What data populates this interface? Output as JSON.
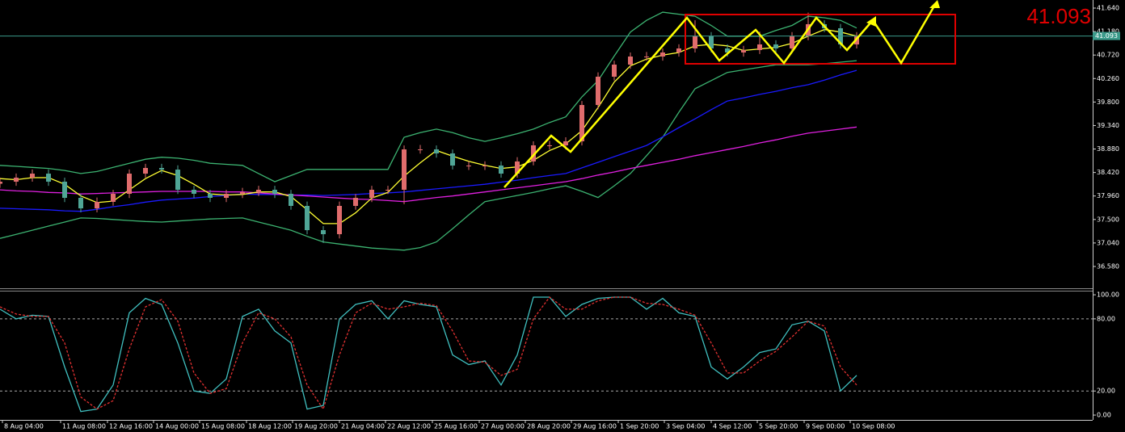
{
  "chart_data": [
    {
      "type": "candlestick",
      "x": [
        0,
        1,
        2,
        3,
        4,
        5,
        6,
        7,
        8,
        9,
        10,
        11,
        12,
        13,
        14,
        15,
        16,
        17,
        18,
        19,
        20,
        21,
        22,
        23,
        24,
        25,
        26,
        27,
        28,
        29,
        30,
        31,
        32,
        33,
        34,
        35,
        36,
        37,
        38,
        39,
        40,
        41,
        42,
        43,
        44,
        45,
        46,
        47,
        48,
        49,
        50,
        51,
        52,
        53
      ],
      "open": [
        38.2,
        38.24,
        38.319,
        38.398,
        38.24,
        37.924,
        37.718,
        37.845,
        38.003,
        38.398,
        38.509,
        38.477,
        38.082,
        38.003,
        37.924,
        38.003,
        38.035,
        38.082,
        38.003,
        37.766,
        37.291,
        37.212,
        37.766,
        37.924,
        38.082,
        38.082,
        38.873,
        38.873,
        38.794,
        38.556,
        38.556,
        38.556,
        38.398,
        38.636,
        38.952,
        38.952,
        39.031,
        39.742,
        40.296,
        40.533,
        40.691,
        40.691,
        40.77,
        40.849,
        41.087,
        40.849,
        40.77,
        40.818,
        40.928,
        40.849,
        41.087,
        41.324,
        41.245,
        40.928
      ],
      "high": [
        38.32,
        38.4,
        38.48,
        38.48,
        38.32,
        38.0,
        37.93,
        38.08,
        38.48,
        38.59,
        38.59,
        38.56,
        38.16,
        38.08,
        38.08,
        38.12,
        38.16,
        38.16,
        38.08,
        37.85,
        37.37,
        37.85,
        38.0,
        38.16,
        38.16,
        38.95,
        38.96,
        38.95,
        38.87,
        38.64,
        38.64,
        38.64,
        38.72,
        39.03,
        39.04,
        39.11,
        39.82,
        40.38,
        40.61,
        40.77,
        40.78,
        40.85,
        40.93,
        41.4,
        41.17,
        40.93,
        40.9,
        41.18,
        41.01,
        41.17,
        41.55,
        41.4,
        41.33,
        41.17
      ],
      "low": [
        38.12,
        38.16,
        38.24,
        38.16,
        37.84,
        37.64,
        37.64,
        37.77,
        37.92,
        38.32,
        38.4,
        38.0,
        37.92,
        37.84,
        37.84,
        37.92,
        37.96,
        37.92,
        37.69,
        37.21,
        37.04,
        37.13,
        37.69,
        37.84,
        38.0,
        37.8,
        38.79,
        38.71,
        38.48,
        38.47,
        38.47,
        38.32,
        38.32,
        38.56,
        38.87,
        38.87,
        38.95,
        39.66,
        40.22,
        40.45,
        40.61,
        40.61,
        40.69,
        40.77,
        40.77,
        40.69,
        40.69,
        40.74,
        40.77,
        40.77,
        41.01,
        41.17,
        40.85,
        40.85
      ],
      "close": [
        38.24,
        38.319,
        38.398,
        38.24,
        37.924,
        37.718,
        37.845,
        38.003,
        38.398,
        38.509,
        38.477,
        38.082,
        38.003,
        37.924,
        38.003,
        38.035,
        38.082,
        38.003,
        37.766,
        37.291,
        37.212,
        37.766,
        37.924,
        38.082,
        38.082,
        38.873,
        38.873,
        38.794,
        38.556,
        38.556,
        38.556,
        38.398,
        38.636,
        38.952,
        38.952,
        39.031,
        39.742,
        40.296,
        40.533,
        40.691,
        40.691,
        40.77,
        40.849,
        41.087,
        40.849,
        40.77,
        40.818,
        40.928,
        40.849,
        41.087,
        41.324,
        41.245,
        40.928,
        41.093
      ],
      "up_color": "#e06c6c",
      "down_color": "#4fa596",
      "series": [
        {
          "color": "#3cb371",
          "values": [
            38.56,
            38.54,
            38.52,
            38.5,
            38.46,
            38.4,
            38.44,
            38.52,
            38.6,
            38.68,
            38.72,
            38.7,
            38.66,
            38.6,
            38.58,
            38.56,
            38.4,
            38.24,
            38.36,
            38.48,
            38.48,
            38.48,
            38.48,
            38.48,
            38.48,
            39.11,
            39.2,
            39.27,
            39.2,
            39.1,
            39.03,
            39.1,
            39.18,
            39.27,
            39.4,
            39.51,
            39.9,
            40.22,
            40.7,
            41.17,
            41.4,
            41.56,
            41.52,
            41.48,
            41.3,
            41.09,
            41.09,
            41.09,
            41.2,
            41.3,
            41.48,
            41.45,
            41.4,
            41.25
          ]
        },
        {
          "color": "#3cb371",
          "values": [
            37.13,
            37.21,
            37.29,
            37.37,
            37.45,
            37.53,
            37.52,
            37.5,
            37.48,
            37.46,
            37.45,
            37.47,
            37.49,
            37.51,
            37.52,
            37.53,
            37.45,
            37.37,
            37.29,
            37.17,
            37.06,
            37.02,
            36.98,
            36.94,
            36.92,
            36.9,
            36.95,
            37.06,
            37.32,
            37.59,
            37.85,
            37.91,
            37.97,
            38.03,
            38.1,
            38.16,
            38.05,
            37.93,
            38.16,
            38.4,
            38.75,
            39.11,
            39.6,
            40.06,
            40.22,
            40.38,
            40.43,
            40.48,
            40.53,
            40.53,
            40.53,
            40.55,
            40.58,
            40.61
          ]
        },
        {
          "color": "#1a1aff",
          "values": [
            37.72,
            37.71,
            37.7,
            37.69,
            37.67,
            37.66,
            37.7,
            37.75,
            37.79,
            37.84,
            37.88,
            37.9,
            37.92,
            37.95,
            37.97,
            38.0,
            37.99,
            37.99,
            37.98,
            37.98,
            37.97,
            37.98,
            37.99,
            38.01,
            38.02,
            38.04,
            38.07,
            38.1,
            38.13,
            38.16,
            38.19,
            38.23,
            38.27,
            38.32,
            38.36,
            38.4,
            38.51,
            38.62,
            38.73,
            38.84,
            38.95,
            39.12,
            39.3,
            39.47,
            39.65,
            39.82,
            39.88,
            39.95,
            40.01,
            40.08,
            40.14,
            40.23,
            40.33,
            40.42
          ]
        },
        {
          "color": "#e020e0",
          "values": [
            38.08,
            38.06,
            38.05,
            38.03,
            38.02,
            38.0,
            38.01,
            38.02,
            38.03,
            38.04,
            38.05,
            38.05,
            38.05,
            38.05,
            38.04,
            38.04,
            38.02,
            38.0,
            37.98,
            37.96,
            37.94,
            37.92,
            37.9,
            37.89,
            37.87,
            37.85,
            37.89,
            37.93,
            37.96,
            38.0,
            38.04,
            38.08,
            38.12,
            38.16,
            38.2,
            38.24,
            38.3,
            38.37,
            38.43,
            38.5,
            38.56,
            38.62,
            38.68,
            38.75,
            38.81,
            38.87,
            38.93,
            39.0,
            39.06,
            39.13,
            39.19,
            39.23,
            39.27,
            39.31
          ]
        },
        {
          "color": "#ffff33",
          "values": [
            38.3,
            38.28,
            38.32,
            38.32,
            38.19,
            37.96,
            37.83,
            37.86,
            38.08,
            38.3,
            38.46,
            38.36,
            38.19,
            38.0,
            37.98,
            37.99,
            38.04,
            38.04,
            37.95,
            37.69,
            37.42,
            37.42,
            37.63,
            37.92,
            38.03,
            38.35,
            38.61,
            38.85,
            38.74,
            38.64,
            38.56,
            38.5,
            38.53,
            38.66,
            38.85,
            38.98,
            39.24,
            39.69,
            40.19,
            40.51,
            40.64,
            40.72,
            40.77,
            40.9,
            40.93,
            40.9,
            40.81,
            40.84,
            40.87,
            40.95,
            41.09,
            41.22,
            41.17,
            41.09
          ]
        }
      ],
      "last_price": 41.093,
      "xlim": [
        0,
        67.5
      ],
      "xticks": [
        {
          "value": 0.15,
          "label": "8 Aug 04:00"
        },
        {
          "value": 3.75,
          "label": "11 Aug 08:00"
        },
        {
          "value": 6.65,
          "label": "12 Aug 16:00"
        },
        {
          "value": 9.5,
          "label": "14 Aug 00:00"
        },
        {
          "value": 12.35,
          "label": "15 Aug 08:00"
        },
        {
          "value": 15.25,
          "label": "18 Aug 12:00"
        },
        {
          "value": 18.1,
          "label": "19 Aug 20:00"
        },
        {
          "value": 21,
          "label": "21 Aug 04:00"
        },
        {
          "value": 23.85,
          "label": "22 Aug 12:00"
        },
        {
          "value": 26.75,
          "label": "25 Aug 16:00"
        },
        {
          "value": 29.65,
          "label": "27 Aug 00:00"
        },
        {
          "value": 32.5,
          "label": "28 Aug 20:00"
        },
        {
          "value": 35.35,
          "label": "29 Aug 16:00"
        },
        {
          "value": 38.25,
          "label": "1 Sep 20:00"
        },
        {
          "value": 41.1,
          "label": "3 Sep 04:00"
        },
        {
          "value": 44,
          "label": "4 Sep 12:00"
        },
        {
          "value": 46.85,
          "label": "5 Sep 20:00"
        },
        {
          "value": 49.75,
          "label": "9 Sep 00:00"
        },
        {
          "value": 52.6,
          "label": "10 Sep 08:00"
        }
      ],
      "ylim": [
        36.153,
        41.798
      ],
      "yticks": [
        {
          "value": 41.64,
          "label": "41.640"
        },
        {
          "value": 41.18,
          "label": "41.180"
        },
        {
          "value": 40.72,
          "label": "40.720"
        },
        {
          "value": 40.26,
          "label": "40.260"
        },
        {
          "value": 39.8,
          "label": "39.800"
        },
        {
          "value": 39.34,
          "label": "39.340"
        },
        {
          "value": 38.88,
          "label": "38.880"
        },
        {
          "value": 38.42,
          "label": "38.420"
        },
        {
          "value": 37.96,
          "label": "37.960"
        },
        {
          "value": 37.5,
          "label": "37.500"
        },
        {
          "value": 37.04,
          "label": "37.040"
        },
        {
          "value": 36.58,
          "label": "36.580"
        }
      ]
    },
    {
      "type": "line",
      "x": [
        0,
        1,
        2,
        3,
        4,
        5,
        6,
        7,
        8,
        9,
        10,
        11,
        12,
        13,
        14,
        15,
        16,
        17,
        18,
        19,
        20,
        21,
        22,
        23,
        24,
        25,
        26,
        27,
        28,
        29,
        30,
        31,
        32,
        33,
        34,
        35,
        36,
        37,
        38,
        39,
        40,
        41,
        42,
        43,
        44,
        45,
        46,
        47,
        48,
        49,
        50,
        51,
        52,
        53
      ],
      "xlim": [
        0,
        67.5
      ],
      "series": [
        {
          "color": "#40c0c0",
          "values": [
            88,
            80,
            83,
            82,
            40,
            3,
            5,
            25,
            85,
            97,
            92,
            60,
            20,
            18,
            30,
            82,
            88,
            70,
            60,
            5,
            8,
            80,
            92,
            95,
            80,
            95,
            92,
            90,
            50,
            42,
            45,
            25,
            50,
            98,
            98,
            82,
            92,
            97,
            98,
            98,
            88,
            97,
            85,
            82,
            40,
            30,
            40,
            52,
            55,
            75,
            78,
            70,
            20,
            33
          ]
        },
        {
          "color": "#e03030",
          "dashed": true,
          "values": [
            90,
            84,
            82,
            82,
            60,
            15,
            5,
            12,
            55,
            90,
            96,
            78,
            35,
            18,
            22,
            60,
            85,
            80,
            65,
            25,
            5,
            50,
            85,
            93,
            88,
            90,
            93,
            91,
            70,
            45,
            44,
            33,
            38,
            80,
            98,
            88,
            88,
            95,
            98,
            98,
            93,
            92,
            88,
            83,
            60,
            35,
            35,
            45,
            53,
            65,
            78,
            74,
            40,
            25
          ]
        }
      ],
      "ylim": [
        -4.0,
        103.4
      ],
      "yticks": [
        {
          "value": 100,
          "label": "100.00"
        },
        {
          "value": 80,
          "label": "80.00"
        },
        {
          "value": 20,
          "label": "20.00"
        },
        {
          "value": 0,
          "label": "0.00"
        }
      ]
    }
  ]
}
